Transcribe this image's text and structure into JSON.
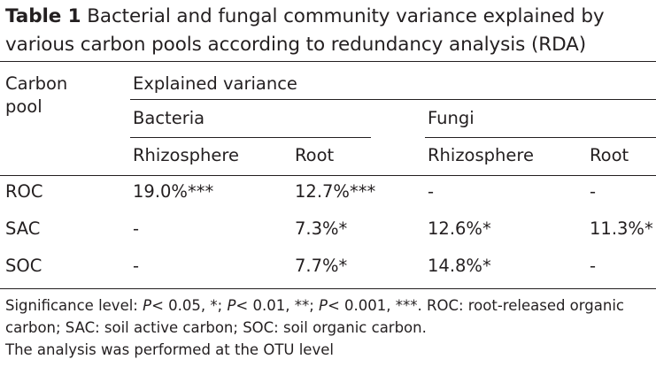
{
  "caption": {
    "label": "Table 1",
    "title": "Bacterial and fungal community variance explained by various carbon pools according to redundancy analysis (RDA)"
  },
  "table": {
    "row_header_line1": "Carbon",
    "row_header_line2": "pool",
    "group_header": "Explained variance",
    "kingdoms": [
      "Bacteria",
      "Fungi"
    ],
    "compartments": [
      "Rhizosphere",
      "Root",
      "Rhizosphere",
      "Root"
    ],
    "rows": [
      {
        "pool": "ROC",
        "values": [
          "19.0%***",
          "12.7%***",
          "-",
          "-"
        ]
      },
      {
        "pool": "SAC",
        "values": [
          "-",
          "7.3%*",
          "12.6%*",
          "11.3%*"
        ]
      },
      {
        "pool": "SOC",
        "values": [
          "-",
          "7.7%*",
          "14.8%*",
          "-"
        ]
      }
    ]
  },
  "footnote": {
    "t1": "Significance level: ",
    "p1": "P",
    "t2": "< 0.05, *; ",
    "p2": "P",
    "t3": "< 0.01, **; ",
    "p3": "P",
    "t4": "< 0.001, ***. ROC: root-released organic carbon; SAC: soil active carbon; SOC: soil organic carbon.",
    "t5": "The analysis was performed at the OTU level"
  }
}
